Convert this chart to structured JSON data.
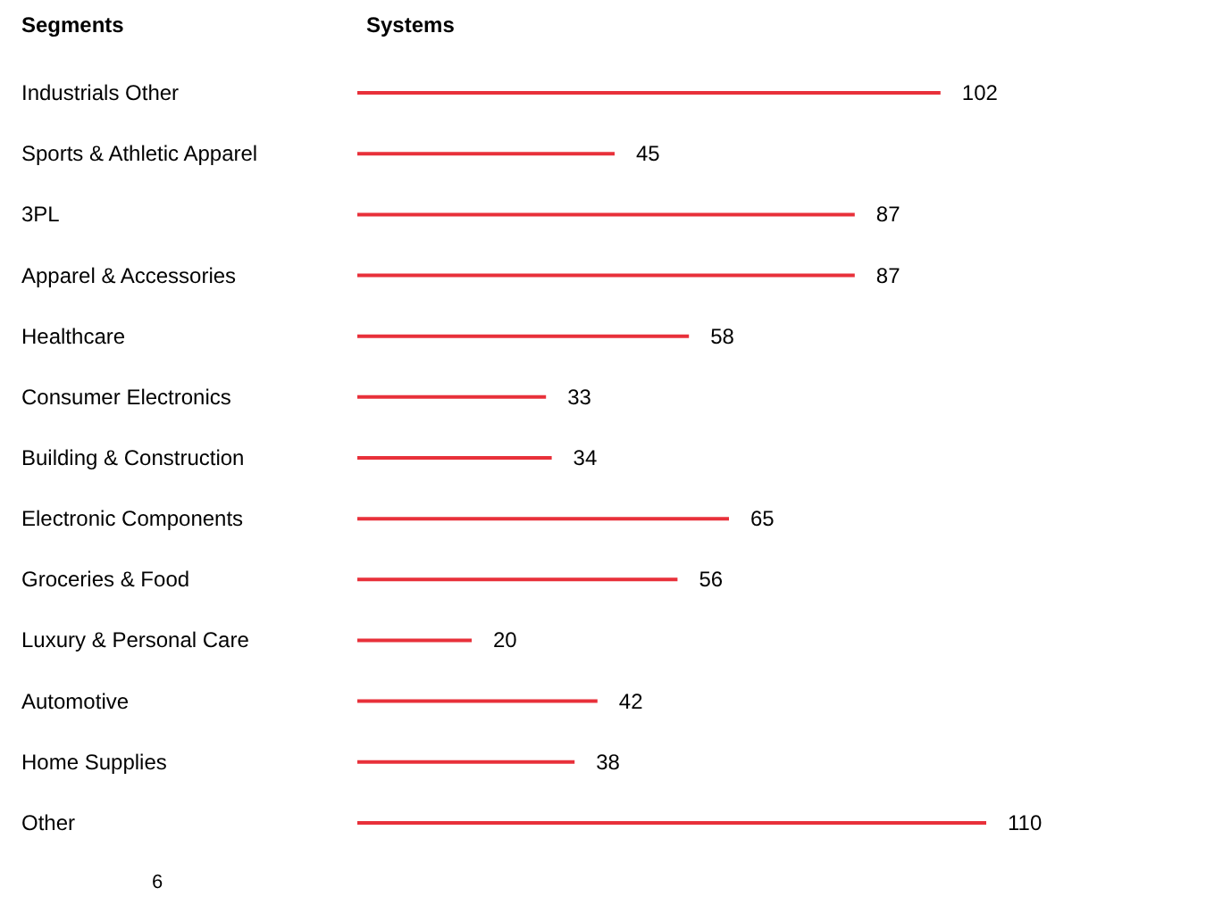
{
  "chart_data": {
    "type": "bar",
    "orientation": "horizontal",
    "ylabel": "Segments",
    "xlabel": "Systems",
    "categories": [
      "Industrials Other",
      "Sports & Athletic Apparel",
      "3PL",
      "Apparel & Accessories",
      "Healthcare",
      "Consumer Electronics",
      "Building & Construction",
      "Electronic Components",
      "Groceries & Food",
      "Luxury & Personal Care",
      "Automotive",
      "Home Supplies",
      "Other"
    ],
    "values": [
      102,
      45,
      87,
      87,
      58,
      33,
      34,
      65,
      56,
      20,
      42,
      38,
      110
    ],
    "color": "#e8303a",
    "data_labels": true,
    "tick_labels": "y",
    "annotations": [
      "6"
    ]
  }
}
